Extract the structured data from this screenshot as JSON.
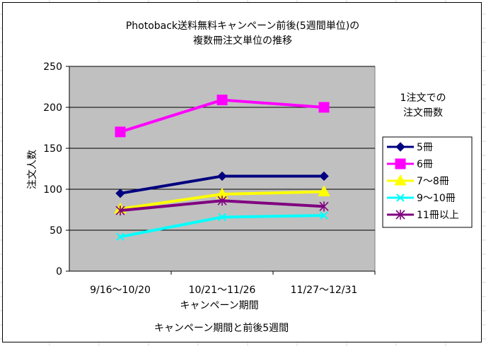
{
  "chart_data": {
    "type": "line",
    "title_line1": "Photoback送料無料キャンペーン前後(5週間単位)の",
    "title_line2": "複数冊注文単位の推移",
    "xlabel": "キャンペーン期間",
    "ylabel": "注文人数",
    "subtitle_bottom": "キャンペーン期間と前後5週間",
    "legend_title_line1": "1注文での",
    "legend_title_line2": "注文冊数",
    "legend_position": "right",
    "grid": true,
    "ylim": [
      0,
      250
    ],
    "yticks": [
      "0",
      "50",
      "100",
      "150",
      "200",
      "250"
    ],
    "categories": [
      "9/16～10/20",
      "10/21～11/26",
      "11/27～12/31"
    ],
    "series": [
      {
        "name": "5冊",
        "values": [
          95,
          116,
          116
        ],
        "color": "#000080",
        "marker": "diamond"
      },
      {
        "name": "6冊",
        "values": [
          170,
          209,
          200
        ],
        "color": "#ff00ff",
        "marker": "square"
      },
      {
        "name": "7～8冊",
        "values": [
          76,
          94,
          97
        ],
        "color": "#ffff00",
        "marker": "triangle"
      },
      {
        "name": "9～10冊",
        "values": [
          42,
          66,
          68
        ],
        "color": "#00ffff",
        "marker": "x"
      },
      {
        "name": "11冊以上",
        "values": [
          74,
          86,
          79
        ],
        "color": "#800080",
        "marker": "star"
      }
    ]
  },
  "colors": {
    "plot_bg": "#c0c0c0",
    "gridline": "#000000"
  }
}
